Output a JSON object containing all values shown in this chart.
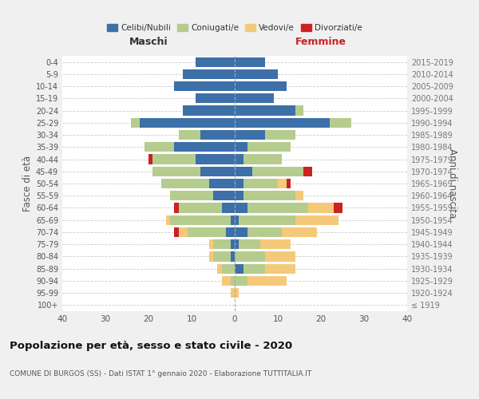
{
  "age_groups": [
    "100+",
    "95-99",
    "90-94",
    "85-89",
    "80-84",
    "75-79",
    "70-74",
    "65-69",
    "60-64",
    "55-59",
    "50-54",
    "45-49",
    "40-44",
    "35-39",
    "30-34",
    "25-29",
    "20-24",
    "15-19",
    "10-14",
    "5-9",
    "0-4"
  ],
  "birth_years": [
    "≤ 1919",
    "1920-1924",
    "1925-1929",
    "1930-1934",
    "1935-1939",
    "1940-1944",
    "1945-1949",
    "1950-1954",
    "1955-1959",
    "1960-1964",
    "1965-1969",
    "1970-1974",
    "1975-1979",
    "1980-1984",
    "1985-1989",
    "1990-1994",
    "1995-1999",
    "2000-2004",
    "2005-2009",
    "2010-2014",
    "2015-2019"
  ],
  "colors": {
    "celibi": "#3d6fa8",
    "coniugati": "#b5cc8e",
    "vedovi": "#f5c97a",
    "divorziati": "#cc2222"
  },
  "males": {
    "celibi": [
      0,
      0,
      0,
      0,
      1,
      1,
      2,
      1,
      3,
      5,
      6,
      8,
      9,
      14,
      8,
      22,
      12,
      9,
      14,
      12,
      9
    ],
    "coniugati": [
      0,
      0,
      1,
      3,
      4,
      4,
      9,
      14,
      10,
      10,
      11,
      11,
      10,
      7,
      5,
      2,
      0,
      0,
      0,
      0,
      0
    ],
    "vedovi": [
      0,
      1,
      2,
      1,
      1,
      1,
      2,
      1,
      0,
      0,
      0,
      0,
      0,
      0,
      0,
      0,
      0,
      0,
      0,
      0,
      0
    ],
    "divorziati": [
      0,
      0,
      0,
      0,
      0,
      0,
      1,
      0,
      1,
      0,
      0,
      0,
      1,
      0,
      0,
      0,
      0,
      0,
      0,
      0,
      0
    ]
  },
  "females": {
    "celibi": [
      0,
      0,
      0,
      2,
      0,
      1,
      3,
      1,
      3,
      2,
      2,
      4,
      2,
      3,
      7,
      22,
      14,
      9,
      12,
      10,
      7
    ],
    "coniugati": [
      0,
      0,
      3,
      5,
      7,
      5,
      8,
      13,
      14,
      12,
      8,
      12,
      9,
      10,
      7,
      5,
      2,
      0,
      0,
      0,
      0
    ],
    "vedovi": [
      0,
      1,
      9,
      7,
      7,
      7,
      8,
      10,
      6,
      2,
      2,
      0,
      0,
      0,
      0,
      0,
      0,
      0,
      0,
      0,
      0
    ],
    "divorziati": [
      0,
      0,
      0,
      0,
      0,
      0,
      0,
      0,
      2,
      0,
      1,
      2,
      0,
      0,
      0,
      0,
      0,
      0,
      0,
      0,
      0
    ]
  },
  "xlim": 40,
  "title": "Popolazione per età, sesso e stato civile - 2020",
  "subtitle": "COMUNE DI BURGOS (SS) - Dati ISTAT 1° gennaio 2020 - Elaborazione TUTTITALIA.IT",
  "xlabel_left": "Maschi",
  "xlabel_right": "Femmine",
  "ylabel_left": "Fasce di età",
  "ylabel_right": "Anni di nascita",
  "legend_labels": [
    "Celibi/Nubili",
    "Coniugati/e",
    "Vedovi/e",
    "Divorziati/e"
  ],
  "bg_color": "#f0f0f0",
  "chart_bg": "#ffffff"
}
